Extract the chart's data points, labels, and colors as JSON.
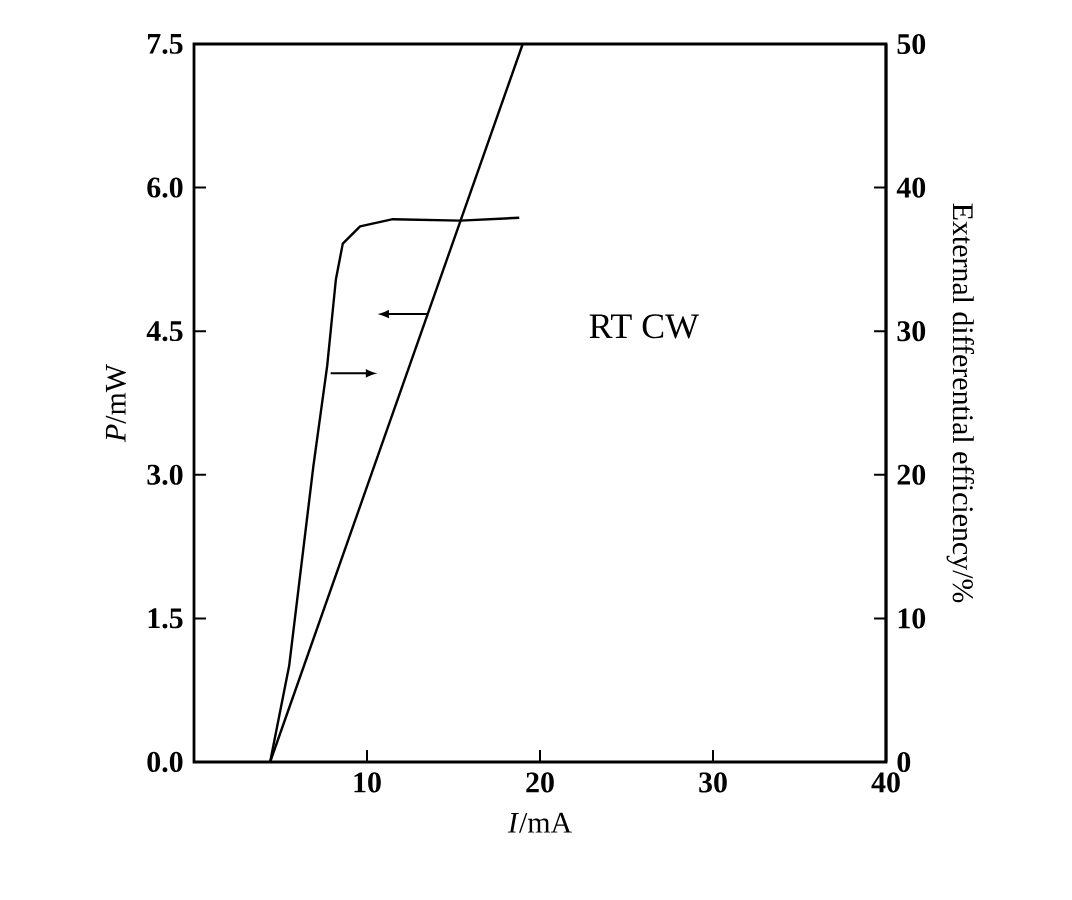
{
  "chart_data": {
    "type": "line",
    "xlabel": "*I*/mA",
    "ylabel": "*P*/mW",
    "y2label": "External differential efficiency/%",
    "annotations": [
      "RT CW"
    ],
    "series": [
      {
        "color": "#000000",
        "x": [
          4.4,
          19.0
        ],
        "values": [
          0,
          7.5
        ]
      },
      {
        "color": "#000000",
        "axis": "y2",
        "x": [
          4.4,
          5.5,
          6.9,
          7.7,
          8.2,
          8.6,
          9.6,
          11.5,
          15.4,
          18.8
        ],
        "values": [
          0,
          6.7,
          20.6,
          27.6,
          33.6,
          36.1,
          37.3,
          37.8,
          37.7,
          37.9
        ]
      }
    ],
    "xlim": [
      0,
      40
    ],
    "xticks": [
      10,
      20,
      30,
      40
    ],
    "ylim": [
      0,
      7.5
    ],
    "yticks": [
      {
        "value": 0,
        "label": "0.0"
      },
      1.5,
      {
        "value": 3,
        "label": "3.0"
      },
      4.5,
      {
        "value": 6,
        "label": "6.0"
      },
      7.5
    ],
    "y2lim": [
      0,
      50
    ],
    "y2ticks": [
      0,
      10,
      20,
      30,
      40,
      50
    ],
    "grid": false,
    "marker": "none",
    "line_style": "solid"
  }
}
